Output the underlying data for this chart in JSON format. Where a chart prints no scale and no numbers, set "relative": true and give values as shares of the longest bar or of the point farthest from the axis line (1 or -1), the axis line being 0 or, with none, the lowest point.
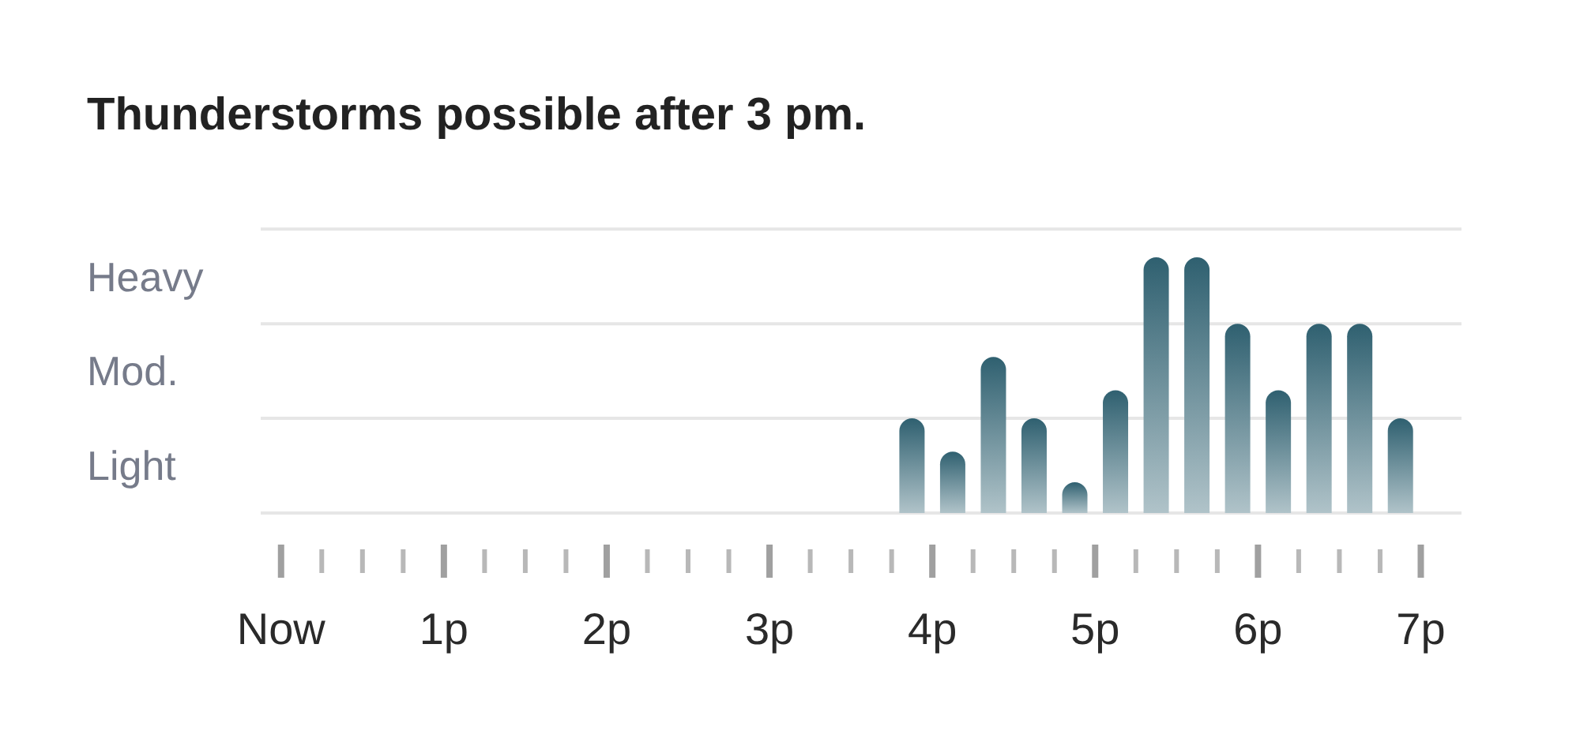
{
  "chart_data": {
    "type": "bar",
    "title": "Thunderstorms possible after 3 pm.",
    "relative": true,
    "x": [
      3.875,
      4.125,
      4.375,
      4.625,
      4.875,
      5.125,
      5.375,
      5.625,
      5.875,
      6.125,
      6.375,
      6.625,
      6.875
    ],
    "values": [
      0.37,
      0.24,
      0.61,
      0.37,
      0.12,
      0.48,
      1,
      1,
      0.74,
      0.48,
      0.74,
      0.74,
      0.37
    ],
    "color": "#2f6070",
    "ref_lines": [
      {
        "axis": "y",
        "value": 0.37,
        "color": "#e6e6e6"
      },
      {
        "axis": "y",
        "value": 0.74,
        "color": "#e6e6e6"
      },
      {
        "axis": "y",
        "value": 1.11,
        "color": "#e6e6e6"
      }
    ],
    "annotations": [
      "Light",
      "Mod.",
      "Heavy"
    ],
    "xlim": [
      -0.125,
      7.25
    ],
    "xticks": [
      {
        "value": 0,
        "label": "Now"
      },
      {
        "value": 1,
        "label": "1p"
      },
      {
        "value": 2,
        "label": "2p"
      },
      {
        "value": 3,
        "label": "3p"
      },
      {
        "value": 4,
        "label": "4p"
      },
      {
        "value": 5,
        "label": "5p"
      },
      {
        "value": 6,
        "label": "6p"
      },
      {
        "value": 7,
        "label": "7p"
      }
    ]
  }
}
